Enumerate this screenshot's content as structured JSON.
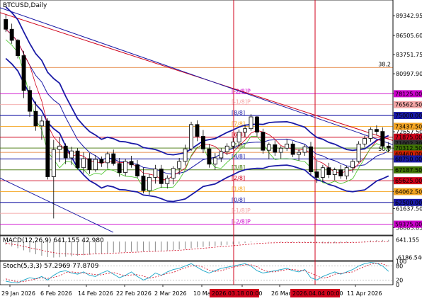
{
  "chart_data": [
    {
      "type": "candlestick",
      "title": "BTCUSD,Daily",
      "x_ticks": [
        "29 Jan 2026",
        "6 Feb 2026",
        "14 Feb 2026",
        "22 Feb 2026",
        "2 Mar 2026",
        "10 Ma",
        "18",
        "26 Mar",
        "11 Apr 2026"
      ],
      "highlighted_dates": [
        "2026.03.18 00:00",
        "2026.04.04 00:00"
      ],
      "y_ticks": [
        "89342.95",
        "86505.60",
        "83751.75",
        "80997.90",
        "78125.00",
        "75000.00",
        "72657.50",
        "70312.50",
        "68750.00",
        "65625.00",
        "64062.50",
        "62500.00",
        "61637.50",
        "58883.85"
      ],
      "ylim": [
        57800,
        91600
      ],
      "price_tags": [
        {
          "value": 76562.5,
          "label": "76562.50",
          "color": "#f4a6a6",
          "text": "#ffffff"
        },
        {
          "value": 73437.5,
          "label": "73437.50",
          "color": "#f5a623",
          "text": "#ffffff"
        },
        {
          "value": 71875.0,
          "label": "71875.00",
          "color": "#d0021b",
          "text": "#ffffff"
        },
        {
          "value": 71000,
          "label": "71002.30",
          "color": "#333333",
          "text": "#ffffff"
        },
        {
          "value": 70312.5,
          "label": "70312.50",
          "color": "#417505",
          "text": "#ffffff"
        },
        {
          "value": 69460.0,
          "label": "69460.00",
          "color": "#cc2200",
          "text": "#ffffff"
        },
        {
          "value": 68750.0,
          "label": "68750.00",
          "color": "#1a1aa6",
          "text": "#ffffff"
        },
        {
          "value": 67187.5,
          "label": "67187.50",
          "color": "#417505",
          "text": "#ffffff"
        },
        {
          "value": 65625.0,
          "label": "65625.00",
          "color": "#d0021b",
          "text": "#ffffff"
        },
        {
          "value": 64062.5,
          "label": "64062.50",
          "color": "#f5a623",
          "text": "#ffffff"
        },
        {
          "value": 62500.0,
          "label": "62500.00",
          "color": "#1a1aa6",
          "text": "#ffffff"
        },
        {
          "value": 59375.0,
          "label": "59375.00",
          "color": "#cc00cc",
          "text": "#ffffff"
        },
        {
          "value": 78125.0,
          "label": "78125.00",
          "color": "#cc00cc",
          "text": "#ffffff"
        },
        {
          "value": 75000.0,
          "label": "75000.00",
          "color": "#1a1aa6",
          "text": "#ffffff"
        }
      ],
      "murrey_levels": [
        {
          "value": 78125,
          "label": "[-2/8]P",
          "color": "#cc00cc"
        },
        {
          "value": 76562.5,
          "label": "[-1/8]P",
          "color": "#f4a6a6"
        },
        {
          "value": 75000,
          "label": "[8/8]",
          "color": "#1a1aa6"
        },
        {
          "value": 73437.5,
          "label": "[7/8]",
          "color": "#f5a623"
        },
        {
          "value": 71875,
          "label": "[6/8]",
          "color": "#d0021b"
        },
        {
          "value": 70312.5,
          "label": "[5/8]",
          "color": "#417505"
        },
        {
          "value": 68750,
          "label": "[4/8]",
          "color": "#1a1aa6"
        },
        {
          "value": 67187.5,
          "label": "[3/8]",
          "color": "#417505"
        },
        {
          "value": 65625,
          "label": "[2/8]",
          "color": "#d0021b"
        },
        {
          "value": 64062.5,
          "label": "[1/8]",
          "color": "#f5a623"
        },
        {
          "value": 62500,
          "label": "[0/8]",
          "color": "#1a1aa6"
        },
        {
          "value": 60937.5,
          "label": "[-1/8]P",
          "color": "#f4a6a6"
        },
        {
          "value": 59375,
          "label": "[-2/8]P",
          "color": "#cc00cc"
        }
      ],
      "fib_labels": [
        {
          "value": 81900,
          "label": "38.2"
        },
        {
          "value": 69700,
          "label": "50.0"
        }
      ],
      "candles": [
        [
          88800,
          89500,
          87000,
          87400
        ],
        [
          87400,
          88200,
          85300,
          85800
        ],
        [
          85800,
          86000,
          83200,
          83600
        ],
        [
          83600,
          84300,
          77500,
          78600
        ],
        [
          78600,
          79200,
          74800,
          75600
        ],
        [
          75600,
          77000,
          72800,
          73500
        ],
        [
          73500,
          74900,
          71500,
          74200
        ],
        [
          74200,
          74600,
          65800,
          66200
        ],
        [
          66200,
          71500,
          60200,
          70100
        ],
        [
          70100,
          71900,
          68300,
          70600
        ],
        [
          70600,
          71000,
          68000,
          68900
        ],
        [
          68900,
          70500,
          67900,
          69900
        ],
        [
          69900,
          70300,
          67300,
          67500
        ],
        [
          67500,
          69700,
          66700,
          68800
        ],
        [
          68800,
          69600,
          66600,
          67200
        ],
        [
          67200,
          69300,
          66900,
          68700
        ],
        [
          68700,
          69100,
          67600,
          68200
        ],
        [
          68200,
          69800,
          67400,
          69500
        ],
        [
          69500,
          70100,
          67800,
          68100
        ],
        [
          68100,
          68900,
          66200,
          66800
        ],
        [
          66800,
          68800,
          66300,
          68400
        ],
        [
          68400,
          69200,
          67500,
          67900
        ],
        [
          67900,
          68600,
          66000,
          66300
        ],
        [
          66300,
          67500,
          63800,
          64200
        ],
        [
          64200,
          66600,
          63600,
          66100
        ],
        [
          66100,
          67900,
          65200,
          67300
        ],
        [
          67300,
          67900,
          64600,
          65200
        ],
        [
          65200,
          66400,
          64500,
          66000
        ],
        [
          66000,
          67700,
          65100,
          67400
        ],
        [
          67400,
          68900,
          66500,
          68400
        ],
        [
          68400,
          70800,
          67800,
          70200
        ],
        [
          70200,
          74100,
          69900,
          73700
        ],
        [
          73700,
          74300,
          71300,
          72000
        ],
        [
          72000,
          72900,
          69600,
          70200
        ],
        [
          70200,
          70900,
          67500,
          68000
        ],
        [
          68000,
          69600,
          67200,
          68900
        ],
        [
          68900,
          70300,
          68300,
          69800
        ],
        [
          69800,
          71000,
          69300,
          70600
        ],
        [
          70600,
          71800,
          70100,
          71200
        ],
        [
          71200,
          73000,
          70600,
          72600
        ],
        [
          72600,
          73700,
          71900,
          73100
        ],
        [
          73100,
          75200,
          72800,
          74800
        ],
        [
          74800,
          74900,
          72000,
          72600
        ],
        [
          72600,
          73100,
          69500,
          70000
        ],
        [
          70000,
          71100,
          68700,
          70800
        ],
        [
          70800,
          71400,
          69200,
          69700
        ],
        [
          69700,
          70600,
          68800,
          70300
        ],
        [
          70300,
          71600,
          69900,
          70900
        ],
        [
          70900,
          71300,
          69000,
          69400
        ],
        [
          69400,
          70200,
          68500,
          69700
        ],
        [
          69700,
          70800,
          69200,
          70500
        ],
        [
          70500,
          71200,
          66400,
          66900
        ],
        [
          66900,
          68500,
          65300,
          66100
        ],
        [
          66100,
          67900,
          65500,
          67500
        ],
        [
          67500,
          68200,
          66000,
          66500
        ],
        [
          66500,
          67500,
          65700,
          67200
        ],
        [
          67200,
          67900,
          65900,
          66300
        ],
        [
          66300,
          67800,
          65800,
          67500
        ],
        [
          67500,
          68700,
          66800,
          68400
        ],
        [
          68400,
          71300,
          68200,
          70900
        ],
        [
          70900,
          72100,
          70400,
          71700
        ],
        [
          71700,
          73300,
          71200,
          73000
        ],
        [
          73000,
          73600,
          72200,
          72700
        ],
        [
          72700,
          73300,
          70200,
          70600
        ],
        [
          70600,
          71200,
          69700,
          70400
        ]
      ]
    },
    {
      "type": "line",
      "title": "MACD(12,26,9) 641.155 42.980",
      "y_ticks": [
        "641.155",
        "-6186.546"
      ],
      "ylim": [
        -7400,
        2200
      ],
      "series": [
        {
          "name": "MACD",
          "values": [
            -1200,
            -1900,
            -2600,
            -3400,
            -4200,
            -4900,
            -5500,
            -6000,
            -6200,
            -6100,
            -5900,
            -5700,
            -5500,
            -5300,
            -5100,
            -4900,
            -4700,
            -4500,
            -4300,
            -4200,
            -4100,
            -4000,
            -3900,
            -3900,
            -3800,
            -3700,
            -3600,
            -3500,
            -3300,
            -3100,
            -2900,
            -2600,
            -2300,
            -2100,
            -1900,
            -1700,
            -1500,
            -1300,
            -1100,
            -900,
            -600,
            -300,
            -100,
            -100,
            -100,
            -150,
            -200,
            -250,
            -300,
            -350,
            -400,
            -500,
            -600,
            -650,
            -650,
            -600,
            -500,
            -400,
            -200,
            0,
            200,
            400,
            550,
            620,
            641
          ]
        },
        {
          "name": "Signal",
          "values": [
            -600,
            -1000,
            -1400,
            -1900,
            -2400,
            -2900,
            -3400,
            -3900,
            -4300,
            -4600,
            -4800,
            -4900,
            -5000,
            -5000,
            -4900,
            -4800,
            -4700,
            -4600,
            -4500,
            -4400,
            -4300,
            -4200,
            -4100,
            -4000,
            -3900,
            -3800,
            -3700,
            -3600,
            -3500,
            -3400,
            -3200,
            -3000,
            -2800,
            -2600,
            -2400,
            -2200,
            -2000,
            -1800,
            -1600,
            -1400,
            -1200,
            -1000,
            -800,
            -650,
            -550,
            -480,
            -430,
            -400,
            -390,
            -390,
            -400,
            -420,
            -450,
            -480,
            -500,
            -500,
            -480,
            -440,
            -380,
            -300,
            -200,
            -100,
            0,
            30,
            43
          ]
        }
      ]
    },
    {
      "type": "line",
      "title": "Stoch(5,3,3) 57.2969 77.8709",
      "y_ticks": [
        "100",
        "80",
        "20",
        "0"
      ],
      "ylim": [
        0,
        100
      ],
      "series": [
        {
          "name": "%K",
          "values": [
            15,
            10,
            8,
            20,
            30,
            25,
            35,
            20,
            40,
            55,
            60,
            50,
            45,
            55,
            40,
            35,
            50,
            60,
            45,
            30,
            40,
            55,
            35,
            20,
            30,
            50,
            40,
            55,
            65,
            70,
            80,
            90,
            75,
            60,
            50,
            60,
            70,
            75,
            80,
            85,
            90,
            80,
            60,
            50,
            55,
            60,
            65,
            70,
            60,
            55,
            65,
            30,
            20,
            35,
            45,
            55,
            45,
            55,
            65,
            80,
            90,
            95,
            92,
            80,
            57
          ]
        },
        {
          "name": "%D",
          "values": [
            25,
            18,
            12,
            13,
            19,
            25,
            30,
            27,
            32,
            38,
            52,
            55,
            52,
            50,
            47,
            43,
            42,
            48,
            52,
            45,
            38,
            42,
            43,
            37,
            28,
            33,
            40,
            48,
            53,
            63,
            72,
            80,
            82,
            75,
            62,
            57,
            60,
            68,
            75,
            80,
            85,
            85,
            77,
            63,
            55,
            55,
            60,
            65,
            65,
            62,
            60,
            50,
            38,
            28,
            33,
            45,
            48,
            52,
            55,
            67,
            78,
            88,
            92,
            89,
            78
          ]
        }
      ]
    }
  ]
}
